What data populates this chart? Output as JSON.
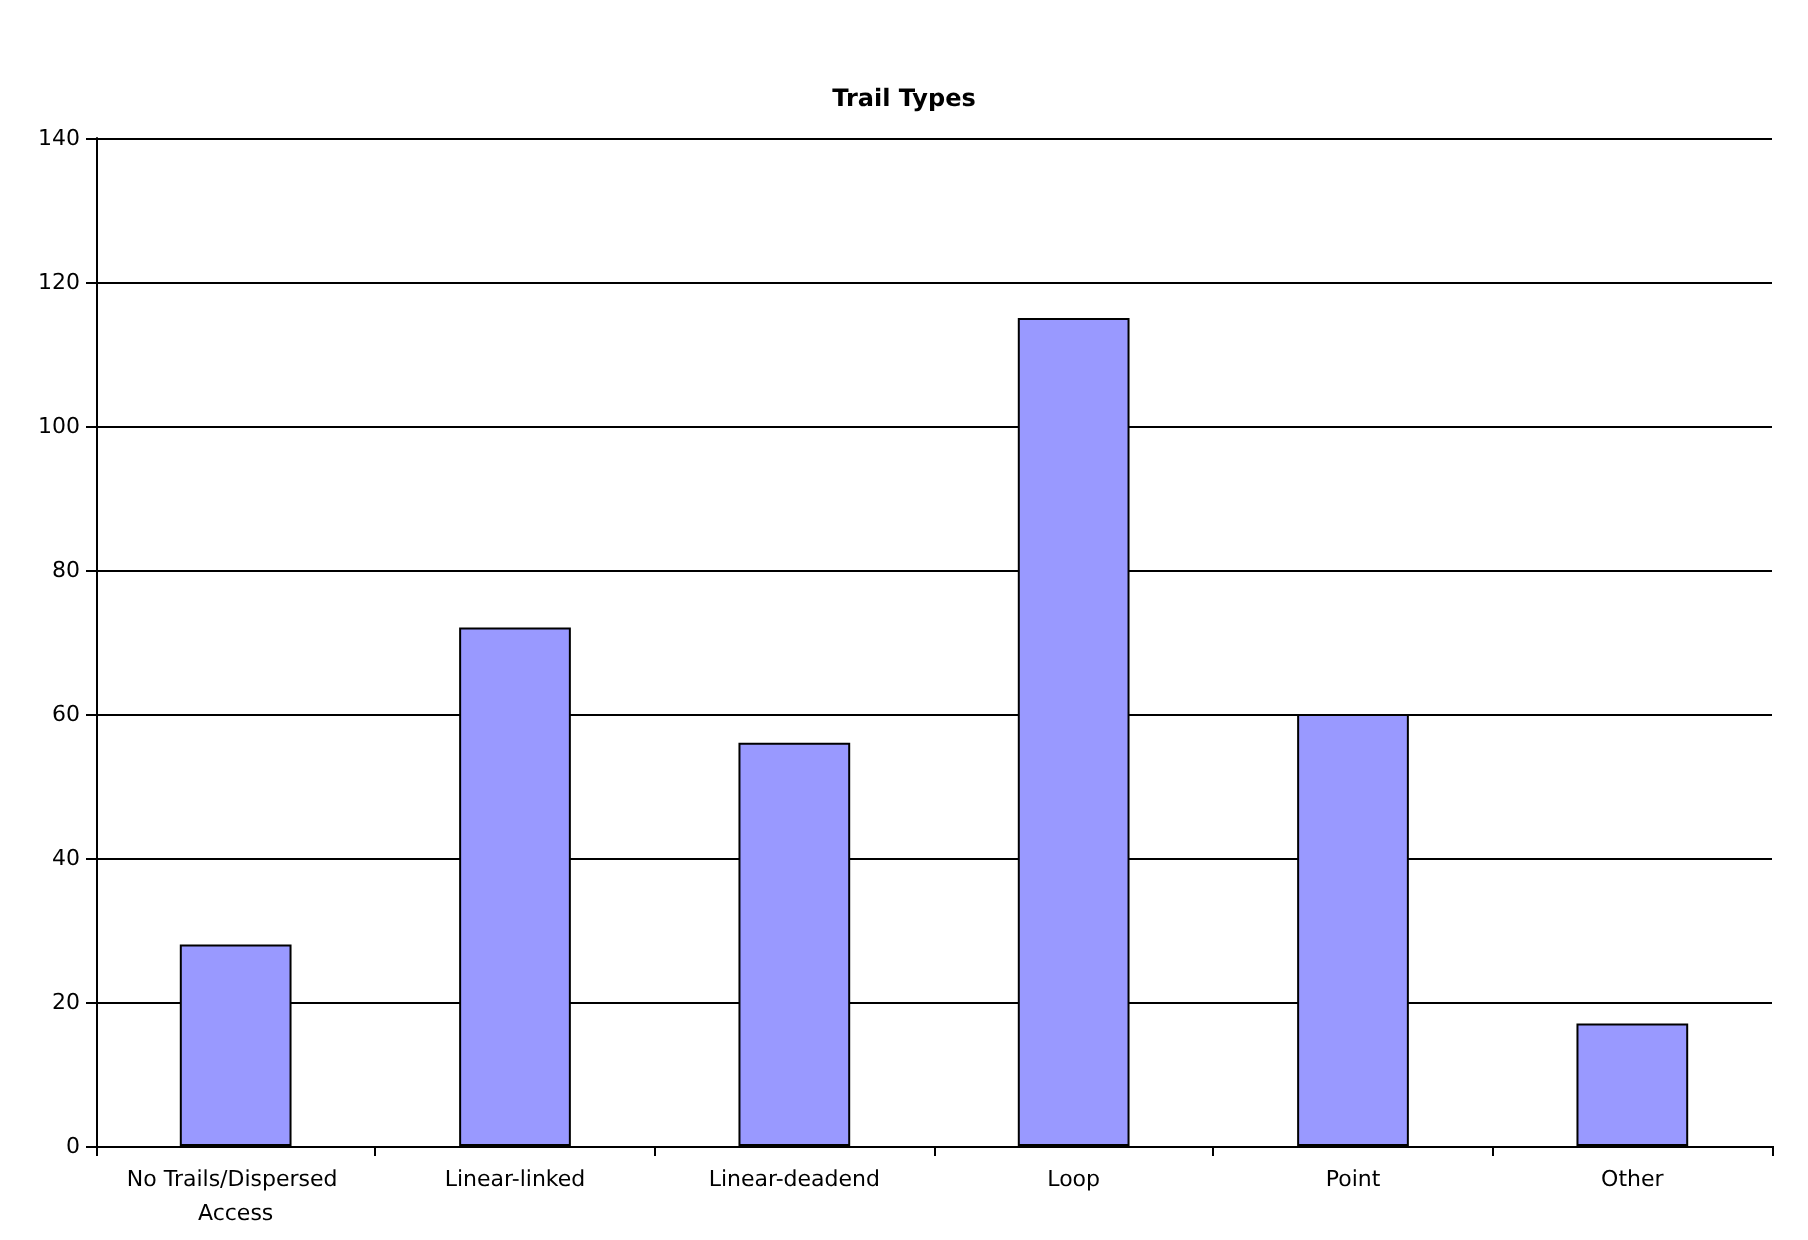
{
  "chart_data": {
    "type": "bar",
    "title": "Trail Types",
    "categories": [
      "No Trails/Dispersed Access",
      "Linear-linked",
      "Linear-deadend",
      "Loop",
      "Point",
      "Other"
    ],
    "values": [
      28,
      72,
      56,
      115,
      60,
      17
    ],
    "color": "#9999ff",
    "ylim": [
      0,
      140
    ],
    "yticks": [
      0,
      20,
      40,
      60,
      80,
      100,
      120,
      140
    ],
    "grid": "y"
  }
}
